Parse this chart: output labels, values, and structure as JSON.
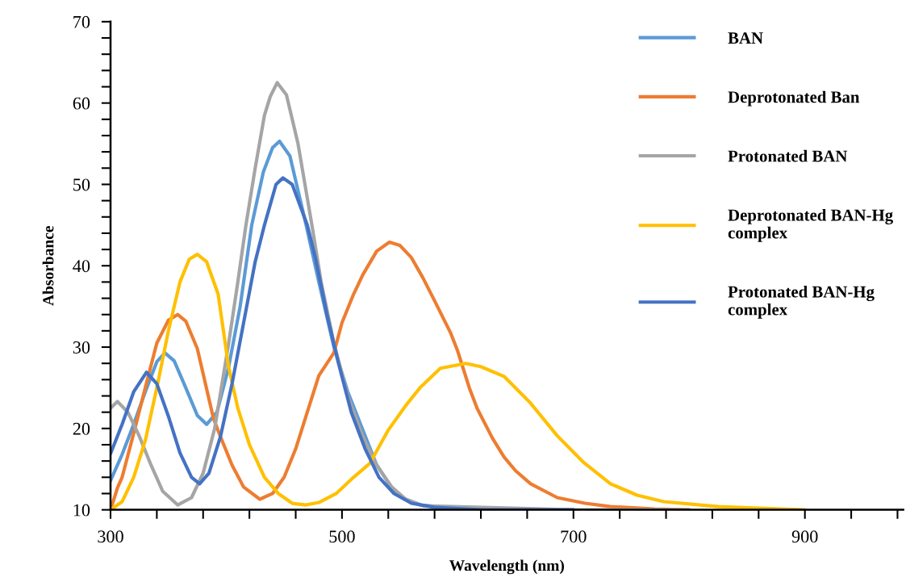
{
  "chart_data": {
    "type": "line",
    "xlabel": "Wavelength (nm)",
    "ylabel": "Absorbance",
    "xlim": [
      300,
      985
    ],
    "ylim": [
      10,
      70
    ],
    "xticks": [
      300,
      {
        "value": 340,
        "label": null
      },
      {
        "value": 380,
        "label": null
      },
      {
        "value": 420,
        "label": null
      },
      {
        "value": 460,
        "label": null
      },
      500,
      {
        "value": 540,
        "label": null
      },
      {
        "value": 580,
        "label": null
      },
      {
        "value": 620,
        "label": null
      },
      {
        "value": 660,
        "label": null
      },
      700,
      {
        "value": 740,
        "label": null
      },
      {
        "value": 780,
        "label": null
      },
      {
        "value": 820,
        "label": null
      },
      {
        "value": 860,
        "label": null
      },
      900,
      {
        "value": 940,
        "label": null
      },
      {
        "value": 980,
        "label": null
      }
    ],
    "yticks": [
      10,
      {
        "value": 12,
        "label": null
      },
      {
        "value": 14,
        "label": null
      },
      {
        "value": 16,
        "label": null
      },
      {
        "value": 18,
        "label": null
      },
      20,
      {
        "value": 22,
        "label": null
      },
      {
        "value": 24,
        "label": null
      },
      {
        "value": 26,
        "label": null
      },
      {
        "value": 28,
        "label": null
      },
      30,
      {
        "value": 32,
        "label": null
      },
      {
        "value": 34,
        "label": null
      },
      {
        "value": 36,
        "label": null
      },
      {
        "value": 38,
        "label": null
      },
      40,
      {
        "value": 42,
        "label": null
      },
      {
        "value": 44,
        "label": null
      },
      {
        "value": 46,
        "label": null
      },
      {
        "value": 48,
        "label": null
      },
      50,
      {
        "value": 52,
        "label": null
      },
      {
        "value": 54,
        "label": null
      },
      {
        "value": 56,
        "label": null
      },
      {
        "value": 58,
        "label": null
      },
      60,
      {
        "value": 62,
        "label": null
      },
      {
        "value": 64,
        "label": null
      },
      {
        "value": 66,
        "label": null
      },
      {
        "value": 68,
        "label": null
      },
      70
    ],
    "grid": false,
    "legend": "top right",
    "marker": "none",
    "line_style": "solid",
    "series": [
      {
        "name": "BAN",
        "color": "#5b9bd5",
        "x": [
          300,
          310,
          320,
          330,
          340,
          347,
          355,
          365,
          375,
          383,
          392,
          402,
          412,
          422,
          432,
          440,
          446,
          455,
          469,
          480,
          493,
          505,
          518,
          530,
          543,
          555,
          568,
          600,
          650,
          700
        ],
        "values": [
          13.6,
          16.8,
          20.5,
          24.5,
          28.2,
          29.3,
          28.3,
          25,
          21.6,
          20.5,
          22,
          27.5,
          35,
          45,
          51.5,
          54.5,
          55.3,
          53.5,
          45,
          38,
          30,
          24.5,
          19.8,
          15.5,
          12.7,
          11.3,
          10.6,
          10.1,
          10,
          10
        ]
      },
      {
        "name": "Deprotonated Ban",
        "color": "#ed7d31",
        "x": [
          300,
          306,
          310,
          320,
          330,
          340,
          350,
          358,
          365,
          375,
          389,
          395,
          405,
          415,
          429,
          440,
          450,
          460,
          470,
          480,
          493,
          500,
          510,
          518,
          530,
          541,
          550,
          560,
          570,
          580,
          594,
          600,
          610,
          617,
          630,
          640,
          650,
          663,
          686,
          710,
          732,
          770,
          800
        ],
        "values": [
          10,
          12.7,
          14,
          19.4,
          25,
          30.5,
          33.3,
          34,
          33.2,
          29.8,
          21.2,
          19,
          15.5,
          12.8,
          11.3,
          12,
          14,
          17.5,
          22,
          26.5,
          29.3,
          33,
          36.5,
          38.9,
          41.8,
          42.9,
          42.5,
          41,
          38.5,
          35.7,
          31.7,
          29.5,
          25,
          22.4,
          18.8,
          16.5,
          14.8,
          13.2,
          11.5,
          10.8,
          10.4,
          10.1,
          10
        ]
      },
      {
        "name": "Protonated BAN",
        "color": "#a5a5a5",
        "x": [
          300,
          306,
          315,
          325,
          335,
          345,
          358,
          370,
          380,
          390,
          402,
          410,
          417,
          425,
          433,
          438,
          444,
          452,
          462,
          474,
          482,
          493,
          505,
          518,
          530,
          543,
          555,
          570,
          700,
          800
        ],
        "values": [
          22.5,
          23.3,
          22,
          19,
          15.5,
          12.3,
          10.6,
          11.5,
          14.5,
          20,
          30.4,
          38,
          45,
          52,
          58.5,
          60.8,
          62.5,
          61,
          55,
          45,
          38,
          30.5,
          24,
          19,
          15.5,
          12.8,
          11.3,
          10.5,
          10,
          10
        ]
      },
      {
        "name": "Deprotonated BAN-Hg\ncomplex",
        "color": "#ffc000",
        "x": [
          300,
          310,
          320,
          330,
          340,
          350,
          360,
          368,
          375,
          383,
          393,
          402,
          410,
          420,
          433,
          445,
          457,
          469,
          480,
          495,
          510,
          524,
          540,
          555,
          568,
          585,
          607,
          620,
          640,
          663,
          686,
          709,
          732,
          755,
          778,
          825,
          860,
          900
        ],
        "values": [
          10,
          11,
          14,
          18.5,
          25,
          32,
          38,
          40.8,
          41.4,
          40.5,
          36.5,
          27.6,
          22.5,
          18,
          14,
          12,
          10.8,
          10.6,
          10.9,
          12,
          14,
          15.7,
          19.8,
          22.8,
          25.1,
          27.4,
          28,
          27.6,
          26.4,
          23.1,
          19.1,
          15.8,
          13.2,
          11.8,
          11,
          10.4,
          10.2,
          10
        ]
      },
      {
        "name": "Protonated BAN-Hg\ncomplex",
        "color": "#4472c4",
        "x": [
          300,
          310,
          320,
          331,
          340,
          350,
          360,
          370,
          377,
          385,
          395,
          405,
          415,
          425,
          433,
          443,
          449,
          457,
          470,
          477,
          487,
          497,
          508,
          520,
          532,
          545,
          560,
          580,
          620,
          700
        ],
        "values": [
          16.9,
          20.5,
          24.5,
          26.9,
          25.5,
          21.5,
          17,
          14,
          13.2,
          14.5,
          19,
          25.5,
          33,
          40.5,
          45,
          50,
          50.8,
          50,
          45,
          41,
          34,
          28,
          22,
          17.5,
          14,
          12,
          10.8,
          10.3,
          10,
          10
        ]
      }
    ]
  }
}
